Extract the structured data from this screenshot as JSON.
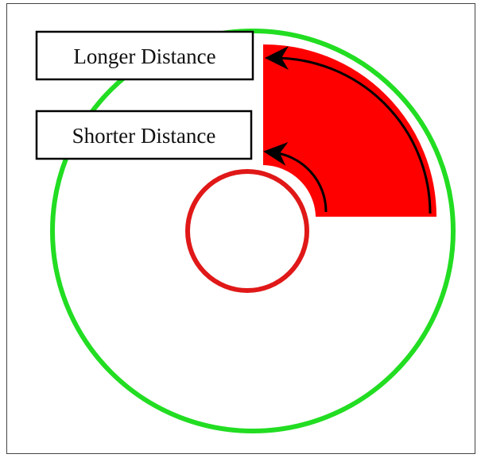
{
  "labels": {
    "longer": "Longer Distance",
    "shorter": "Shorter Distance"
  },
  "colors": {
    "outer_ring": "#22dd22",
    "inner_ring": "#e01818",
    "sector_fill": "#ff0000",
    "arrow": "#000000",
    "label_border": "#000000",
    "frame_border": "#444444"
  }
}
